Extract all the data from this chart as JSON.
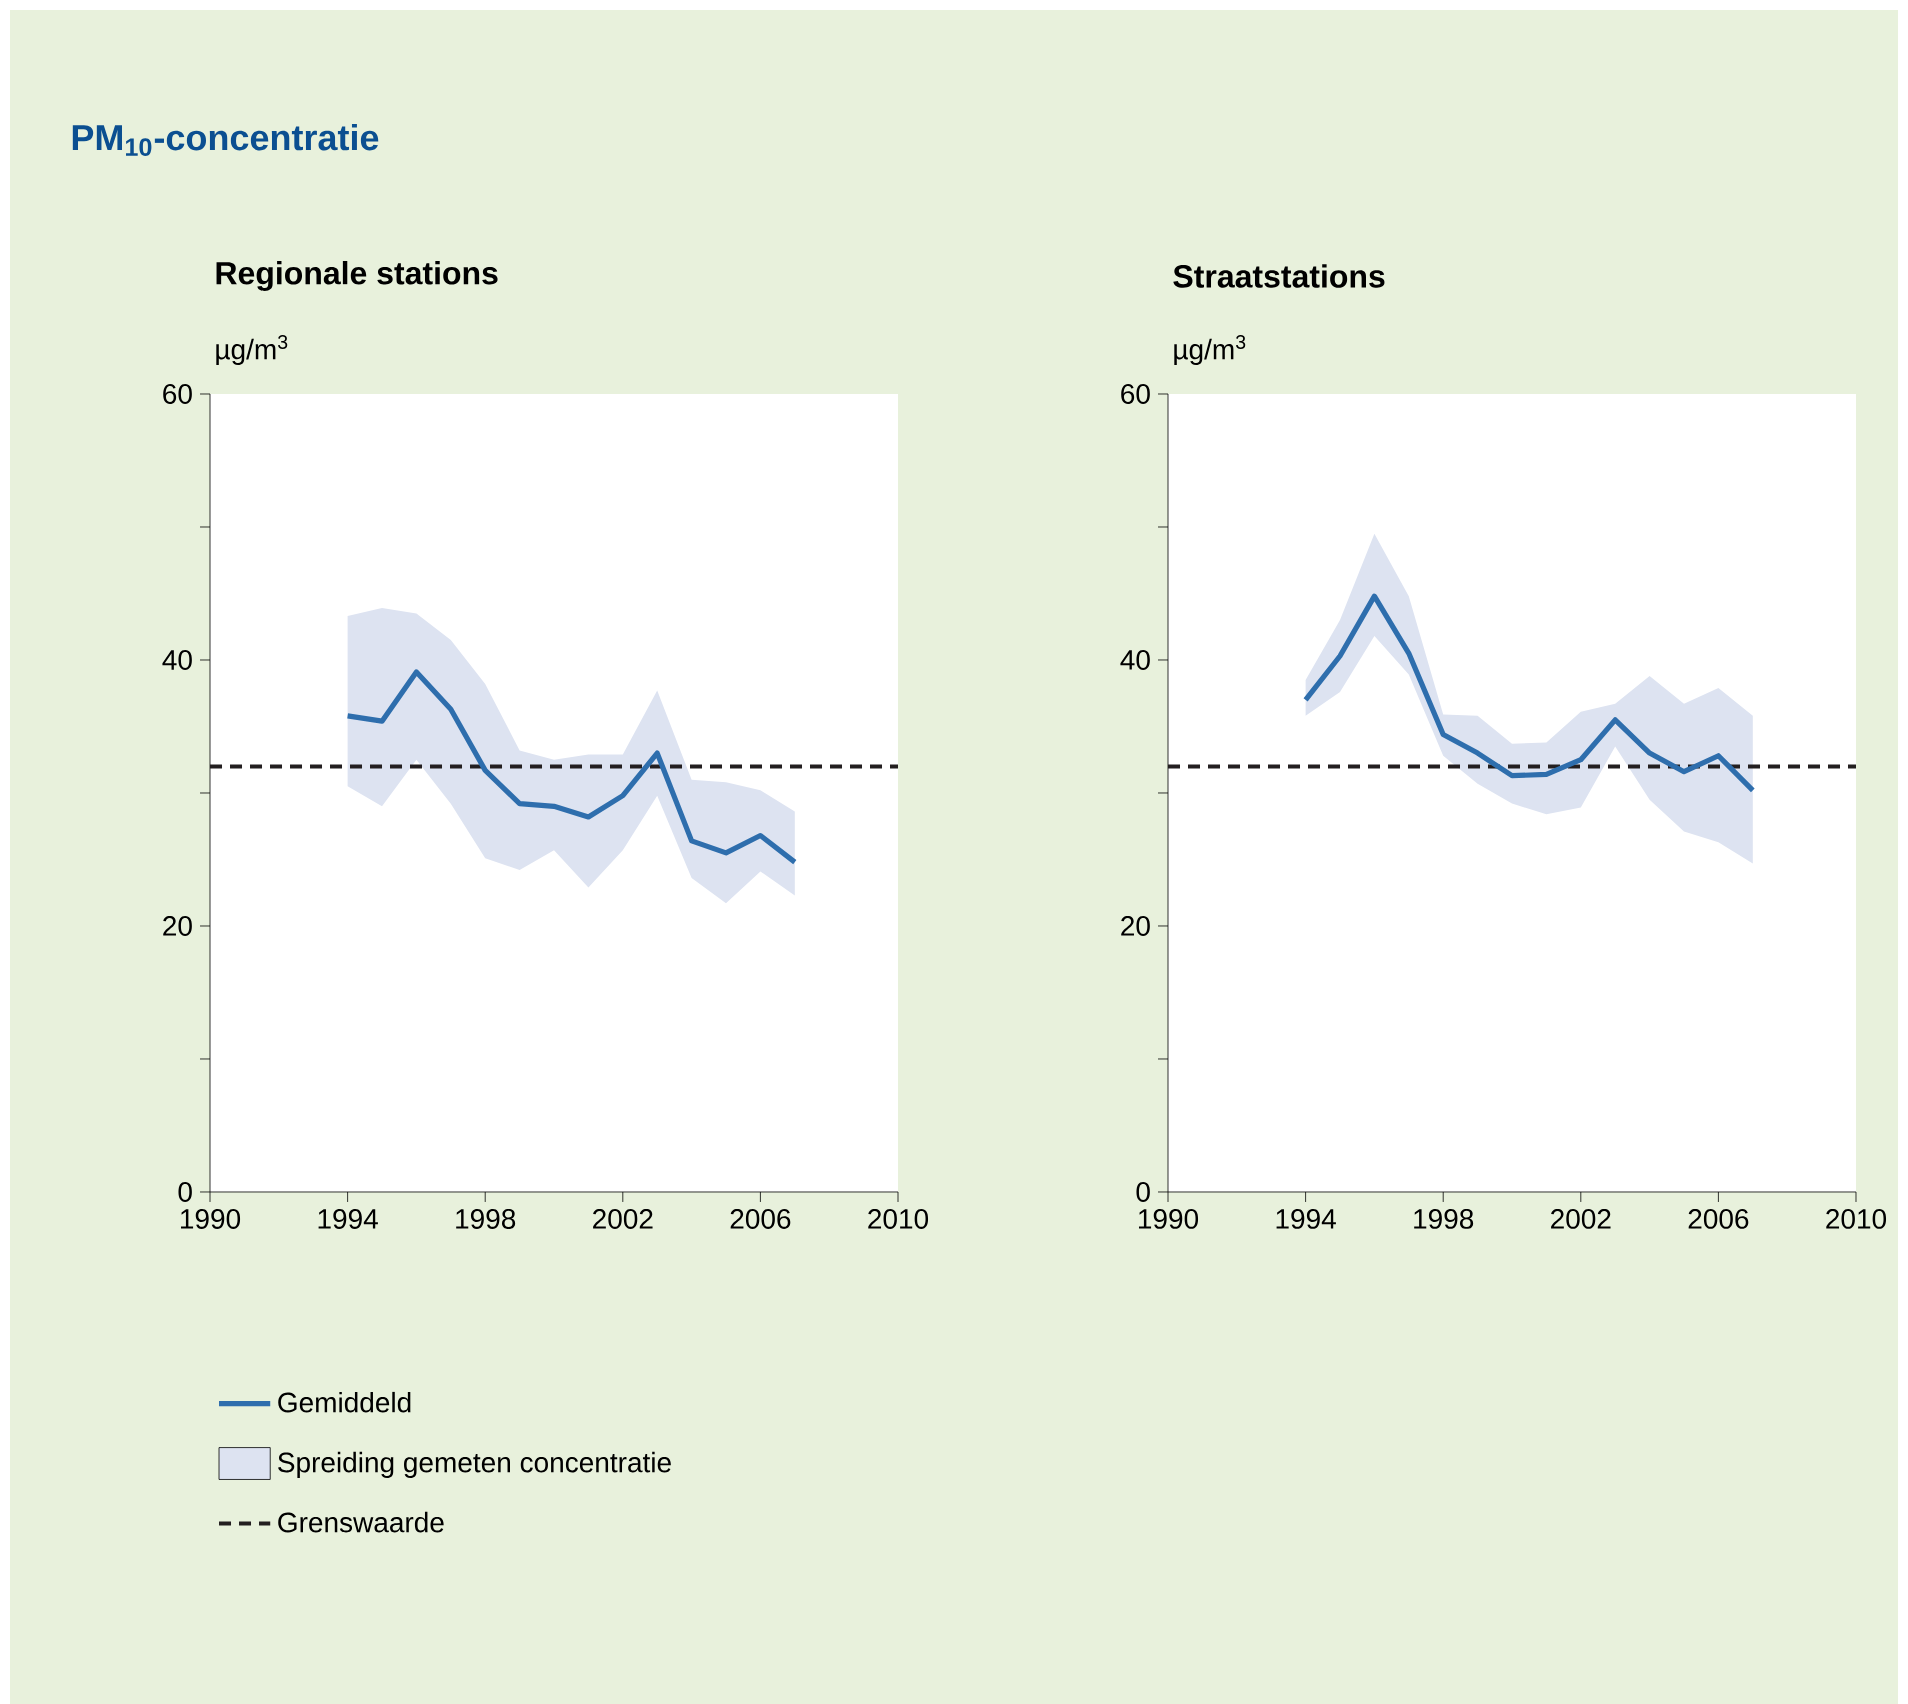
{
  "chart_data": [
    {
      "type": "line",
      "title": "PM$_{10}$-concentratie",
      "subtitle": "Regionale stations",
      "ylabel": "µg/m$^{3}$",
      "x": [
        1994,
        1995,
        1996,
        1997,
        1998,
        1999,
        2000,
        2001,
        2002,
        2003,
        2004,
        2005,
        2006,
        2007
      ],
      "series": [
        {
          "name": "Gemiddeld",
          "color": "#2e6ead",
          "values": [
            35.8,
            35.4,
            39.1,
            36.3,
            31.7,
            29.2,
            29.0,
            28.2,
            29.8,
            33.0,
            26.4,
            25.5,
            26.8,
            24.8
          ],
          "lower": [
            30.5,
            29.0,
            32.5,
            29.2,
            25.1,
            24.2,
            25.7,
            22.9,
            25.7,
            29.8,
            23.6,
            21.7,
            24.1,
            22.3
          ],
          "upper": [
            43.3,
            43.9,
            43.5,
            41.5,
            38.2,
            33.2,
            32.5,
            32.9,
            32.9,
            37.7,
            31.0,
            30.8,
            30.2,
            28.6
          ]
        }
      ],
      "annotations": [
        "Spreiding gemeten concentratie"
      ],
      "ref_lines": [
        {
          "axis": "y",
          "value": 32,
          "label": "Grenswaarde",
          "color": "#231f20",
          "line_style": "dashed"
        }
      ],
      "xlim": [
        1990,
        2010
      ],
      "xticks": [
        1990,
        1994,
        1998,
        2002,
        2006,
        2010
      ],
      "ylim": [
        0,
        60
      ],
      "yticks": [
        0,
        {
          "value": 10,
          "label": null
        },
        20,
        {
          "value": 30,
          "label": null
        },
        40,
        {
          "value": 50,
          "label": null
        },
        60
      ],
      "marker": "none",
      "legend": "bottom"
    },
    {
      "type": "line",
      "subtitle": "Straatstations",
      "ylabel": "µg/m$^{3}$",
      "x": [
        1994,
        1995,
        1996,
        1997,
        1998,
        1999,
        2000,
        2001,
        2002,
        2003,
        2004,
        2005,
        2006,
        2007
      ],
      "series": [
        {
          "color": "#2e6ead",
          "values": [
            37.0,
            40.3,
            44.8,
            40.5,
            34.4,
            33.0,
            31.3,
            31.4,
            32.5,
            35.5,
            33.0,
            31.6,
            32.8,
            30.2
          ],
          "lower": [
            35.8,
            37.6,
            41.8,
            38.9,
            32.8,
            30.7,
            29.2,
            28.4,
            28.9,
            33.5,
            29.5,
            27.1,
            26.3,
            24.7
          ],
          "upper": [
            38.5,
            43.0,
            49.5,
            44.8,
            35.9,
            35.8,
            33.7,
            33.8,
            36.1,
            36.7,
            38.8,
            36.7,
            37.9,
            35.8
          ]
        }
      ],
      "ref_lines": [
        {
          "axis": "y",
          "value": 32,
          "color": "#231f20",
          "line_style": "dashed"
        }
      ],
      "xlim": [
        1990,
        2010
      ],
      "xticks": [
        1990,
        1994,
        1998,
        2002,
        2006,
        2010
      ],
      "ylim": [
        0,
        60
      ],
      "yticks": [
        0,
        {
          "value": 10,
          "label": null
        },
        20,
        {
          "value": 30,
          "label": null
        },
        40,
        {
          "value": 50,
          "label": null
        },
        60
      ],
      "marker": "none"
    }
  ]
}
